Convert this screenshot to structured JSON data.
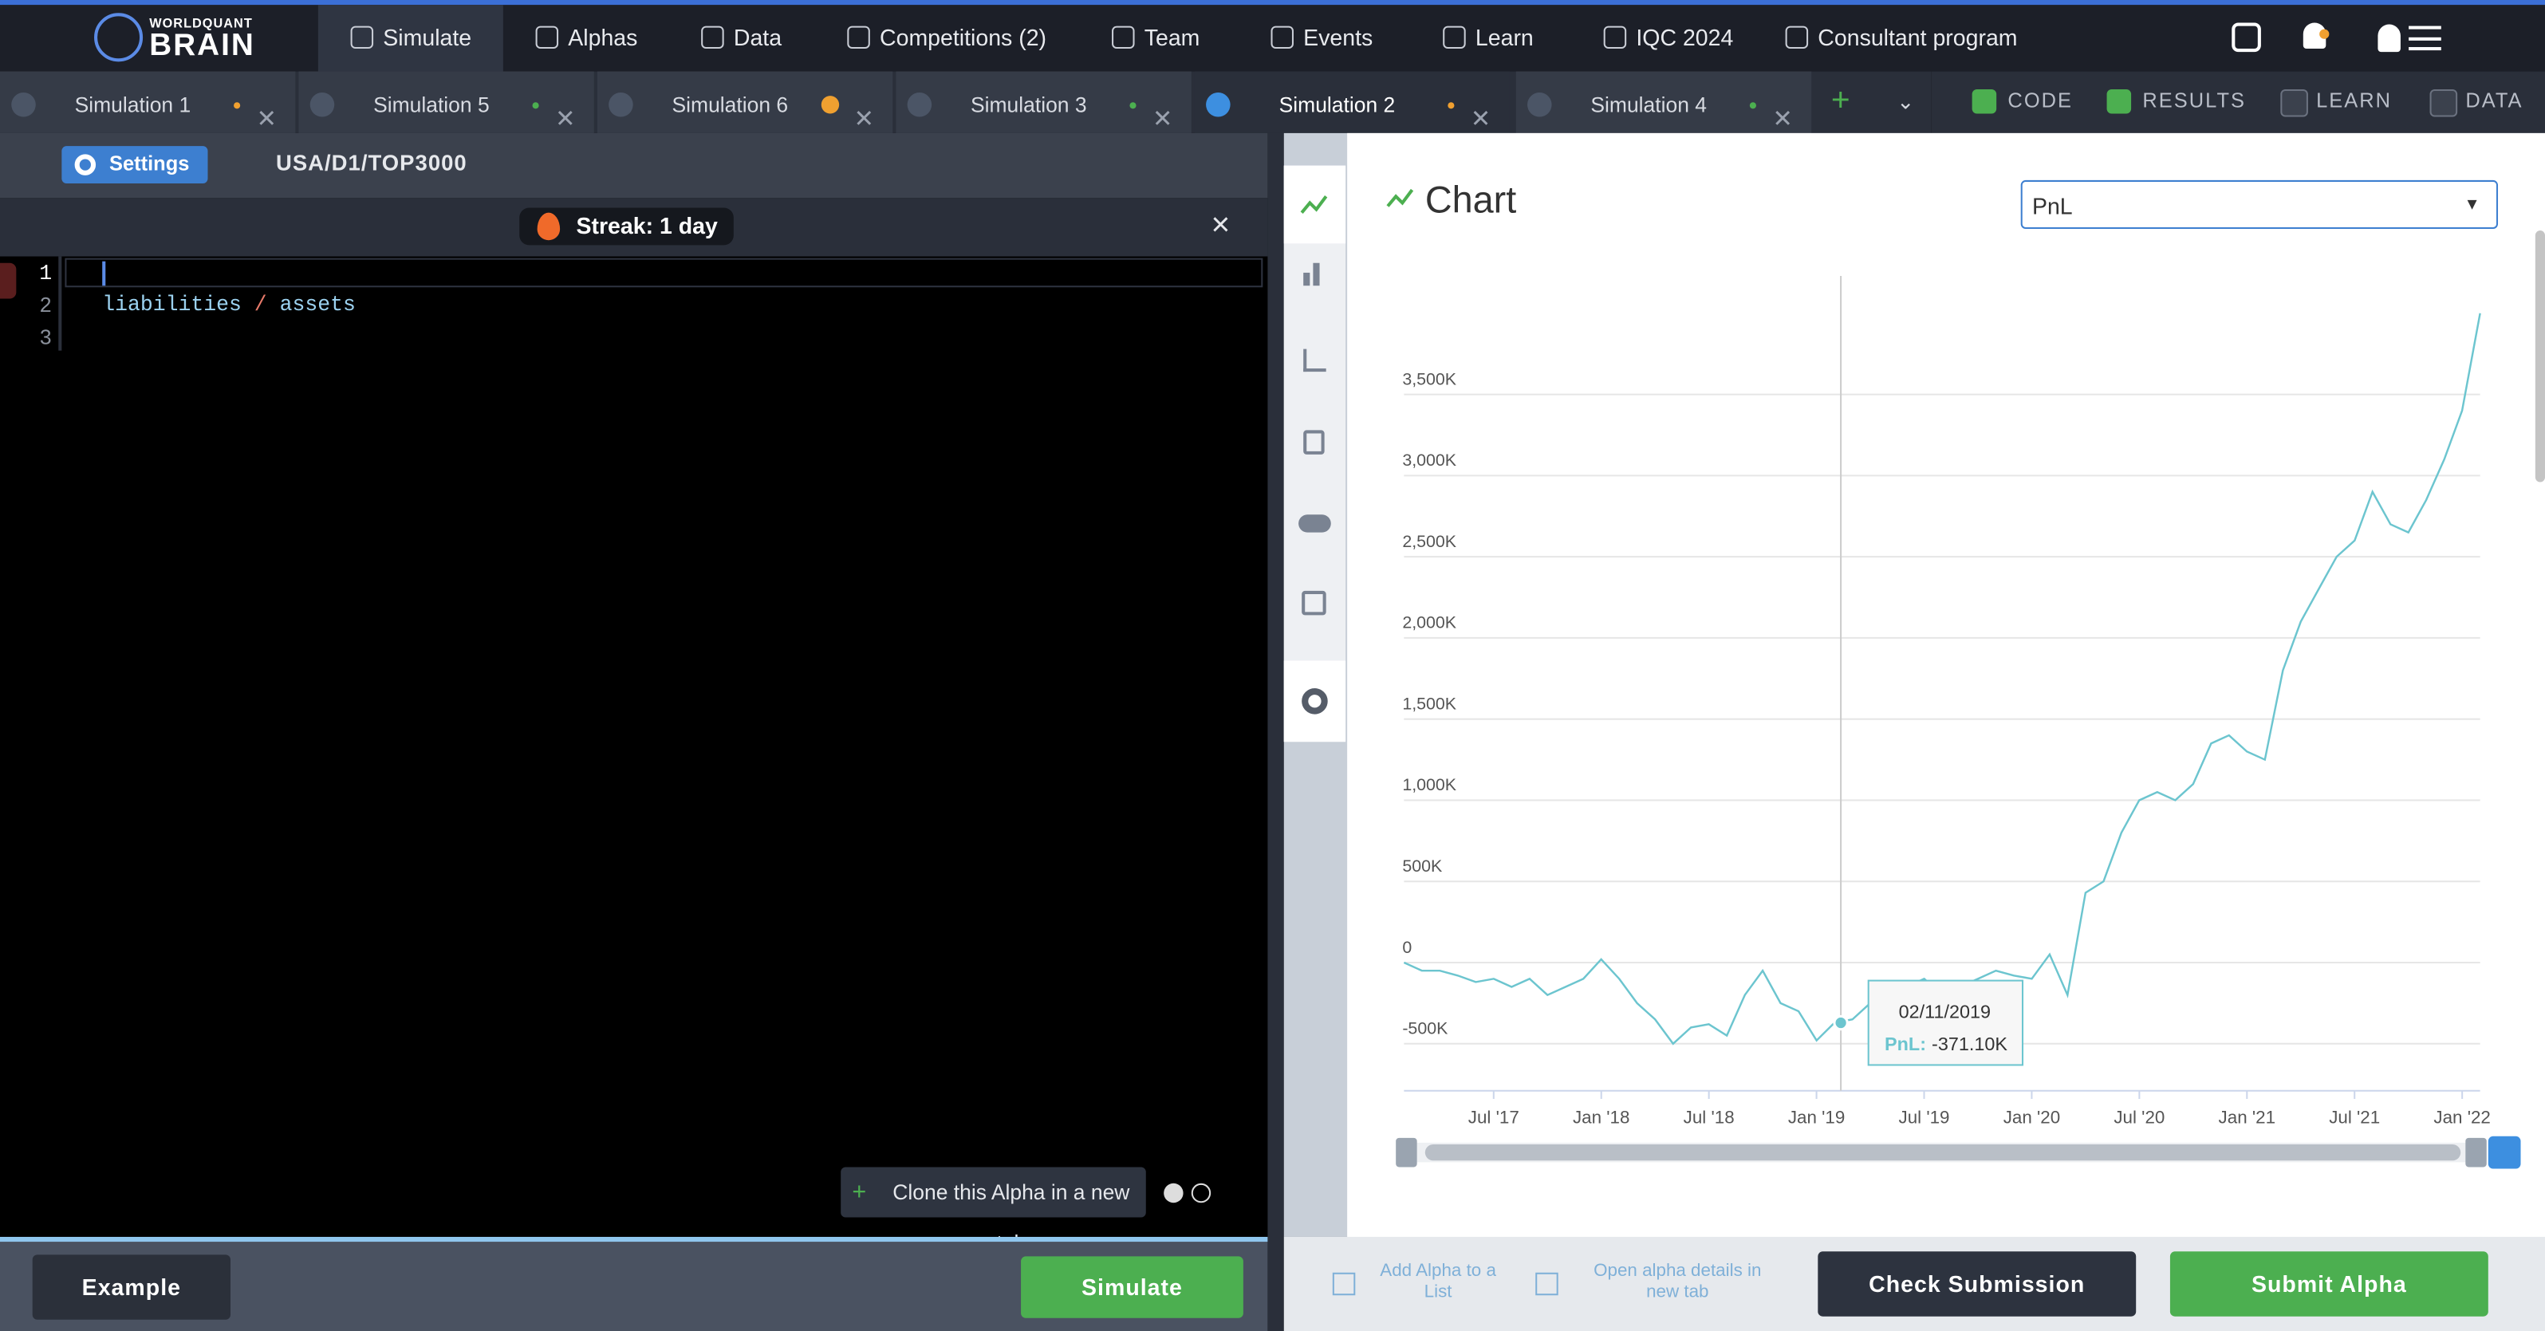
{
  "nav": {
    "logo_top": "WORLDQUANT",
    "logo_bottom": "BRAIN",
    "items": [
      "Simulate",
      "Alphas",
      "Data",
      "Competitions (2)",
      "Team",
      "Events",
      "Learn",
      "IQC 2024",
      "Consultant program"
    ]
  },
  "tabs": [
    {
      "title": "Simulation 1",
      "dot": "#f0a030"
    },
    {
      "title": "Simulation 5",
      "dot": "#4caf50"
    },
    {
      "title": "Simulation 6",
      "dot": "#f0a030"
    },
    {
      "title": "Simulation 3",
      "dot": "#4caf50"
    },
    {
      "title": "Simulation 2",
      "dot": "#f0a030"
    },
    {
      "title": "Simulation 4",
      "dot": "#4caf50"
    }
  ],
  "panels": [
    {
      "label": "CODE",
      "checked": true
    },
    {
      "label": "RESULTS",
      "checked": true
    },
    {
      "label": "LEARN",
      "checked": false
    },
    {
      "label": "DATA",
      "checked": false
    }
  ],
  "settings": {
    "button": "Settings",
    "universe": "USA/D1/TOP3000"
  },
  "streak": {
    "prefix": "Streak:",
    "count": "1",
    "unit": "day"
  },
  "editor": {
    "line_numbers": [
      1,
      2,
      3
    ],
    "code_tokens": [
      "liabilities",
      "/",
      "assets"
    ]
  },
  "clone_button": "Clone this Alpha in a new tab",
  "buttons": {
    "example": "Example",
    "simulate": "Simulate"
  },
  "results": {
    "title": "Chart",
    "select": "PnL",
    "add_to_list": "Add Alpha to a List",
    "open_details": "Open alpha details in new tab",
    "check": "Check Submission",
    "submit": "Submit Alpha"
  },
  "chart_data": {
    "type": "line",
    "color": "#6cc5cf",
    "grid": true,
    "x": [
      "2017-02",
      "2017-03",
      "2017-04",
      "2017-05",
      "2017-06",
      "2017-07",
      "2017-08",
      "2017-09",
      "2017-10",
      "2017-11",
      "2017-12",
      "2018-01",
      "2018-02",
      "2018-03",
      "2018-04",
      "2018-05",
      "2018-06",
      "2018-07",
      "2018-08",
      "2018-09",
      "2018-10",
      "2018-11",
      "2018-12",
      "2019-01",
      "2019-02",
      "2019-03",
      "2019-04",
      "2019-05",
      "2019-06",
      "2019-07",
      "2019-08",
      "2019-09",
      "2019-10",
      "2019-11",
      "2019-12",
      "2020-01",
      "2020-02",
      "2020-03",
      "2020-04",
      "2020-05",
      "2020-06",
      "2020-07",
      "2020-08",
      "2020-09",
      "2020-10",
      "2020-11",
      "2020-12",
      "2021-01",
      "2021-02",
      "2021-03",
      "2021-04",
      "2021-05",
      "2021-06",
      "2021-07",
      "2021-08",
      "2021-09",
      "2021-10",
      "2021-11",
      "2021-12",
      "2022-01",
      "2022-02"
    ],
    "values": [
      0,
      -50,
      -50,
      -80,
      -120,
      -100,
      -150,
      -100,
      -200,
      -150,
      -100,
      20,
      -100,
      -250,
      -350,
      -500,
      -400,
      -380,
      -450,
      -200,
      -50,
      -250,
      -300,
      -480,
      -371,
      -350,
      -250,
      -300,
      -150,
      -100,
      -200,
      -150,
      -100,
      -50,
      -80,
      -100,
      50,
      -200,
      430,
      500,
      800,
      1000,
      1050,
      1000,
      1100,
      1350,
      1400,
      1300,
      1250,
      1800,
      2100,
      2300,
      2500,
      2600,
      2900,
      2700,
      2650,
      2850,
      3100,
      3400,
      4000
    ],
    "xlim": [
      "2017-02",
      "2022-02"
    ],
    "xticks": [
      {
        "value": "2017-07",
        "label": "Jul '17"
      },
      {
        "value": "2018-01",
        "label": "Jan '18"
      },
      {
        "value": "2018-07",
        "label": "Jul '18"
      },
      {
        "value": "2019-01",
        "label": "Jan '19"
      },
      {
        "value": "2019-07",
        "label": "Jul '19"
      },
      {
        "value": "2020-01",
        "label": "Jan '20"
      },
      {
        "value": "2020-07",
        "label": "Jul '20"
      },
      {
        "value": "2021-01",
        "label": "Jan '21"
      },
      {
        "value": "2021-07",
        "label": "Jul '21"
      },
      {
        "value": "2022-01",
        "label": "Jan '22"
      }
    ],
    "ylim": [
      -800,
      4200
    ],
    "yticks": [
      {
        "value": -500,
        "label": "-500K"
      },
      0,
      {
        "value": 500,
        "label": "500K"
      },
      {
        "value": 1000,
        "label": "1,000K"
      },
      {
        "value": 1500,
        "label": "1,500K"
      },
      {
        "value": 2000,
        "label": "2,000K"
      },
      {
        "value": 2500,
        "label": "2,500K"
      },
      {
        "value": 3000,
        "label": "3,000K"
      },
      {
        "value": 3500,
        "label": "3,500K"
      }
    ],
    "tooltip": {
      "date": "02/11/2019",
      "label": "PnL:",
      "value": -371.1,
      "value_label": "-371.10K"
    }
  }
}
